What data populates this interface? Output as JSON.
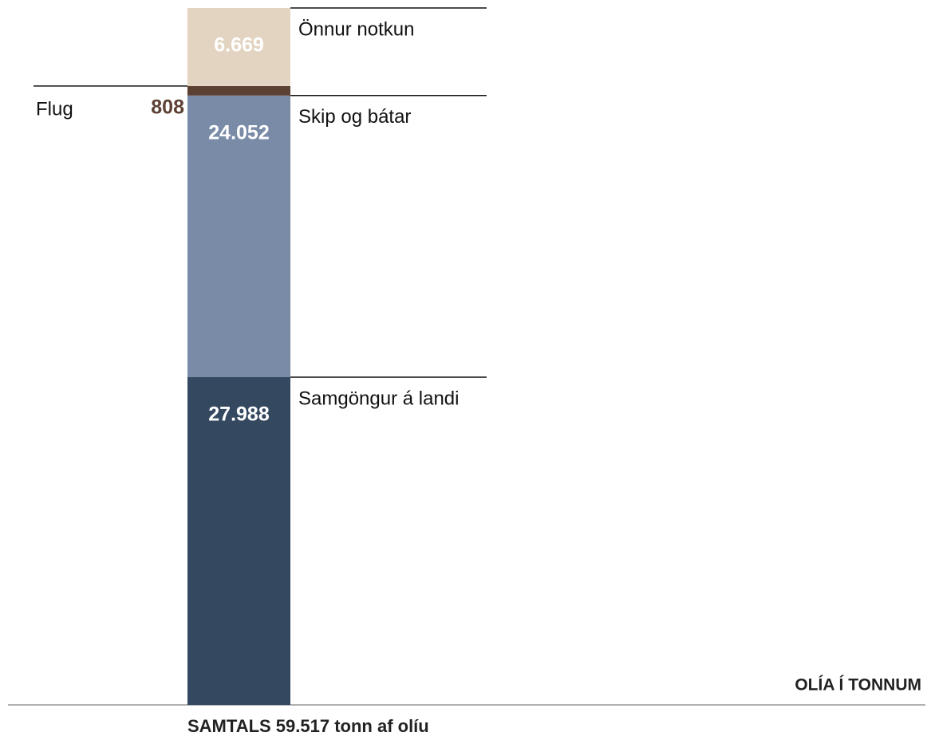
{
  "chart_data": {
    "type": "bar",
    "stacked": true,
    "title": "SAMTALS 59.517 tonn af olíu",
    "subtitle": "OLÍA Í TONNUM",
    "categories": [
      null
    ],
    "series": [
      {
        "name": "Samgöngur á landi",
        "color": "#344860",
        "values": [
          27988
        ],
        "value_labels": [
          "27.988"
        ],
        "label_color": "#ffffff"
      },
      {
        "name": "Skip og bátar",
        "color": "#7a8ba8",
        "values": [
          24052
        ],
        "value_labels": [
          "24.052"
        ],
        "label_color": "#ffffff"
      },
      {
        "name": "Flug",
        "color": "#5c4033",
        "values": [
          808
        ],
        "value_labels": [
          "808"
        ],
        "label_color": "#5c4033"
      },
      {
        "name": "Önnur notkun",
        "color": "#e2d4c1",
        "values": [
          6669
        ],
        "value_labels": [
          "6.669"
        ],
        "label_color": "#ffffff"
      }
    ]
  }
}
